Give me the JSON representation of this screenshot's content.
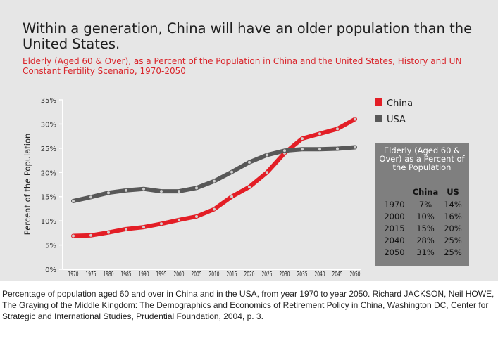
{
  "title": "Within a generation, China will have an older population than the United States.",
  "subtitle": "Elderly (Aged 60 & Over), as a Percent of the Population in China and the United States, History and UN Constant Fertility Scenario, 1970-2050",
  "caption": "Percentage of population aged 60 and over in China and in the USA, from year 1970 to year 2050. Richard JACKSON, Neil HOWE, The Graying of the Middle Kingdom: The Demographics and Economics of Retirement Policy in China, Washington DC, Center for Strategic and International Studies, Prudential Foundation, 2004, p. 3.",
  "colors": {
    "china": "#e31e26",
    "usa": "#585858",
    "marker": "#d0d0d0",
    "panel": "#e6e6e6",
    "table_bg": "#7f7f7f"
  },
  "chart_data": {
    "type": "line",
    "ylabel": "Percent of the Population",
    "xlabel": "",
    "ylim": [
      0,
      35
    ],
    "yticks": [
      "0%",
      "5%",
      "10%",
      "15%",
      "20%",
      "25%",
      "30%",
      "35%"
    ],
    "grid": false,
    "legend_position": "top-right",
    "x": [
      1970,
      1975,
      1980,
      1985,
      1990,
      1995,
      2000,
      2005,
      2010,
      2015,
      2020,
      2025,
      2030,
      2035,
      2040,
      2045,
      2050
    ],
    "xtick_labels": [
      "1970",
      "1975",
      "1980",
      "1985",
      "1990",
      "1995",
      "2000",
      "2005",
      "2010",
      "2015",
      "2020",
      "2025",
      "2030",
      "2035",
      "2040",
      "2045",
      "2050"
    ],
    "series": [
      {
        "name": "China",
        "values": [
          6.9,
          7.0,
          7.6,
          8.3,
          8.7,
          9.4,
          10.2,
          10.9,
          12.4,
          15.0,
          17.0,
          20.0,
          24.0,
          27.0,
          28.0,
          29.0,
          31.0
        ]
      },
      {
        "name": "USA",
        "values": [
          14.1,
          14.9,
          15.8,
          16.3,
          16.6,
          16.1,
          16.1,
          16.8,
          18.2,
          20.1,
          22.1,
          23.6,
          24.5,
          24.8,
          24.8,
          24.9,
          25.2
        ]
      }
    ],
    "table": {
      "title": "Elderly (Aged 60 & Over) as a Percent of the Population",
      "headers": [
        "",
        "China",
        "US"
      ],
      "rows": [
        [
          "1970",
          "7%",
          "14%"
        ],
        [
          "2000",
          "10%",
          "16%"
        ],
        [
          "2015",
          "15%",
          "20%"
        ],
        [
          "2040",
          "28%",
          "25%"
        ],
        [
          "2050",
          "31%",
          "25%"
        ]
      ]
    }
  }
}
